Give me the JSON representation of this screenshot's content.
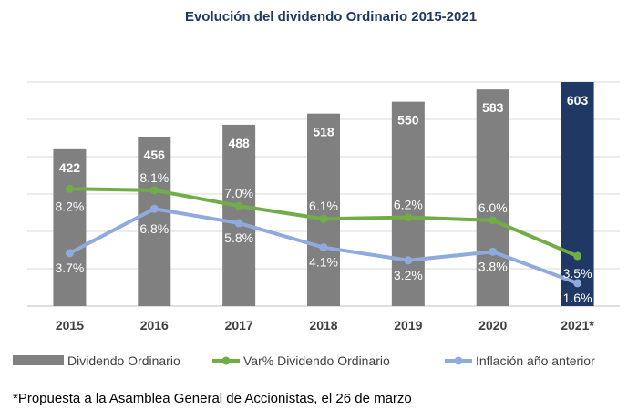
{
  "title": "Evolución del dividendo Ordinario 2015-2021",
  "footnote": "*Propuesta a la Asamblea General de Accionistas, el 26 de marzo",
  "chart_data": {
    "type": "bar",
    "categories": [
      "2015",
      "2016",
      "2017",
      "2018",
      "2019",
      "2020",
      "2021*"
    ],
    "bar_series": {
      "name": "Dividendo Ordinario",
      "values": [
        422,
        456,
        488,
        518,
        550,
        583,
        603
      ],
      "labels": [
        "422",
        "456",
        "488",
        "518",
        "550",
        "583",
        "603"
      ],
      "color": "#808080",
      "highlight_color": "#203864"
    },
    "line_series": [
      {
        "name": "Var% Dividendo Ordinario",
        "values": [
          8.2,
          8.1,
          7.0,
          6.1,
          6.2,
          6.0,
          3.5
        ],
        "labels": [
          "8.2%",
          "8.1%",
          "7.0%",
          "6.1%",
          "6.2%",
          "6.0%",
          "3.5%"
        ],
        "color": "#70ad47"
      },
      {
        "name": "Inflación año anterior",
        "values": [
          3.7,
          6.8,
          5.8,
          4.1,
          3.2,
          3.8,
          1.6
        ],
        "labels": [
          "3.7%",
          "6.8%",
          "5.8%",
          "4.1%",
          "3.2%",
          "3.8%",
          "1.6%"
        ],
        "color": "#8faadc"
      }
    ],
    "grid": true,
    "legend_position": "bottom"
  }
}
